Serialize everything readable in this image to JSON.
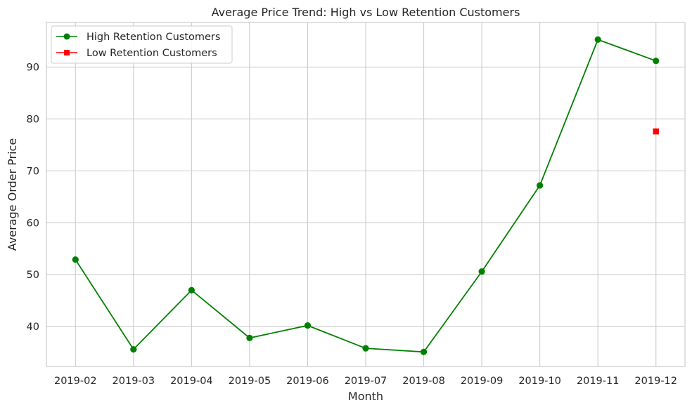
{
  "chart_data": {
    "type": "line",
    "title": "Average Price Trend: High vs Low Retention Customers",
    "xlabel": "Month",
    "ylabel": "Average Order Price",
    "categories": [
      "2019-02",
      "2019-03",
      "2019-04",
      "2019-05",
      "2019-06",
      "2019-07",
      "2019-08",
      "2019-09",
      "2019-10",
      "2019-11",
      "2019-12"
    ],
    "ylim": [
      32.3,
      98.6
    ],
    "yticks": [
      40,
      50,
      60,
      70,
      80,
      90
    ],
    "grid": true,
    "legend_position": "top-left",
    "series": [
      {
        "name": "High Retention Customers",
        "color": "#008000",
        "marker": "circle",
        "values": [
          52.9,
          35.6,
          47.0,
          37.8,
          40.2,
          35.8,
          35.1,
          50.6,
          67.2,
          95.3,
          91.2
        ]
      },
      {
        "name": "Low Retention Customers",
        "color": "#ff0000",
        "marker": "square",
        "values": [
          null,
          null,
          null,
          null,
          null,
          null,
          null,
          null,
          null,
          null,
          77.6
        ]
      }
    ]
  }
}
